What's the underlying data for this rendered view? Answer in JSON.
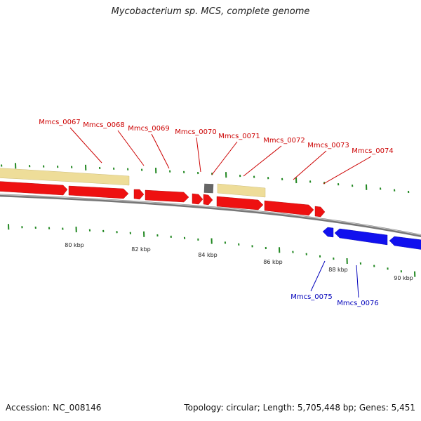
{
  "title": "Mycobacterium sp. MCS, complete genome",
  "footer": {
    "accession": "Accession: NC_008146",
    "summary": "Topology: circular; Length: 5,705,448 bp; Genes: 5,451"
  },
  "colors": {
    "forward_gene": "#ee1111",
    "reverse_gene": "#1111ee",
    "feature_pale": "#eedd99",
    "feature_gray": "#666666",
    "backbone": "#888888",
    "tick": "#228822",
    "forward_label": "#cc0000",
    "reverse_label": "#0000bb"
  },
  "ruler_labels": [
    "80 kbp",
    "82 kbp",
    "84 kbp",
    "86 kbp",
    "88 kbp",
    "90 kbp"
  ],
  "forward_genes": [
    {
      "label": "Mmcs_0067"
    },
    {
      "label": "Mmcs_0068"
    },
    {
      "label": "Mmcs_0069"
    },
    {
      "label": "Mmcs_0070"
    },
    {
      "label": "Mmcs_0071"
    },
    {
      "label": "Mmcs_0072"
    },
    {
      "label": "Mmcs_0073"
    },
    {
      "label": "Mmcs_0074"
    }
  ],
  "reverse_genes": [
    {
      "label": "Mmcs_0075"
    },
    {
      "label": "Mmcs_0076"
    }
  ]
}
